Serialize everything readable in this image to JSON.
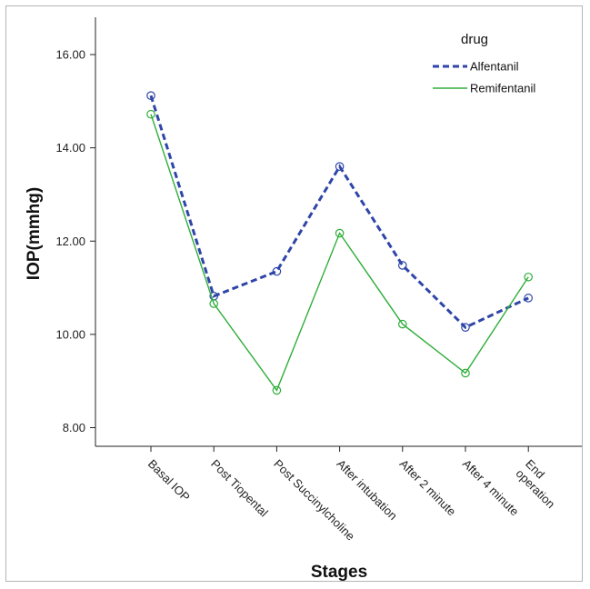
{
  "chart_data": {
    "type": "line",
    "title": "",
    "xlabel": "Stages",
    "ylabel": "IOP(mmhg)",
    "categories": [
      [
        "Basal IOP"
      ],
      [
        "Post Tiopental"
      ],
      [
        "Post Succinylcholine"
      ],
      [
        "After intubation"
      ],
      [
        "After 2 minute"
      ],
      [
        "After 4 minute"
      ],
      [
        "End",
        "operation"
      ]
    ],
    "yticks": [
      "8.00",
      "10.00",
      "12.00",
      "14.00",
      "16.00"
    ],
    "ylim": [
      7.6,
      16.8
    ],
    "grid": false,
    "legend": {
      "title": "drug",
      "placement": "top-right"
    },
    "series": [
      {
        "name": "Alfentanil",
        "color": "#2f45a8",
        "line_style": "dashed",
        "values": [
          15.12,
          10.82,
          11.35,
          13.6,
          11.48,
          10.15,
          10.78
        ]
      },
      {
        "name": "Remifentanil",
        "color": "#2fad3a",
        "line_style": "solid",
        "values": [
          14.72,
          10.66,
          8.8,
          12.17,
          10.22,
          9.17,
          11.23
        ]
      }
    ]
  }
}
